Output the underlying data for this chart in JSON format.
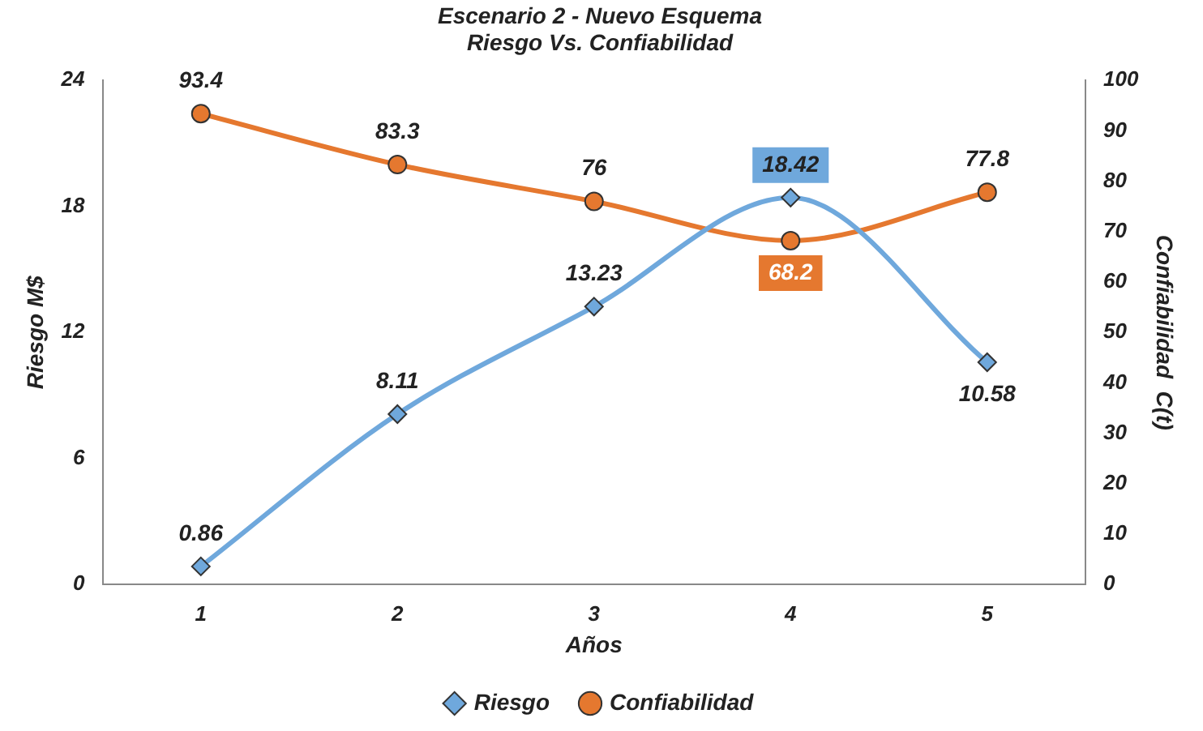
{
  "chart_data": {
    "type": "line",
    "title": "Escenario 2 - Nuevo Esquema\nRiesgo Vs. Confiabilidad",
    "xlabel": "Años",
    "ylabel": "Riesgo M$",
    "y2label": "Confiabilidad  C(t)",
    "categories": [
      "1",
      "2",
      "3",
      "4",
      "5"
    ],
    "series": [
      {
        "name": "Riesgo",
        "color": "#6fa8dc",
        "marker": "diamond",
        "values": [
          0.86,
          8.11,
          13.23,
          18.42,
          10.58
        ]
      },
      {
        "name": "Confiabilidad",
        "color": "#e5782f",
        "marker": "circle",
        "axis": "y2",
        "values": [
          93.4,
          83.3,
          76,
          68.2,
          77.8
        ]
      }
    ],
    "ylim": [
      0,
      24
    ],
    "yticks": [
      0,
      6,
      12,
      18,
      24
    ],
    "y2lim": [
      0,
      100
    ],
    "y2ticks": [
      0,
      10,
      20,
      30,
      40,
      50,
      60,
      70,
      80,
      90,
      100
    ],
    "grid": false,
    "legend": "bottom",
    "data_labels": true
  }
}
